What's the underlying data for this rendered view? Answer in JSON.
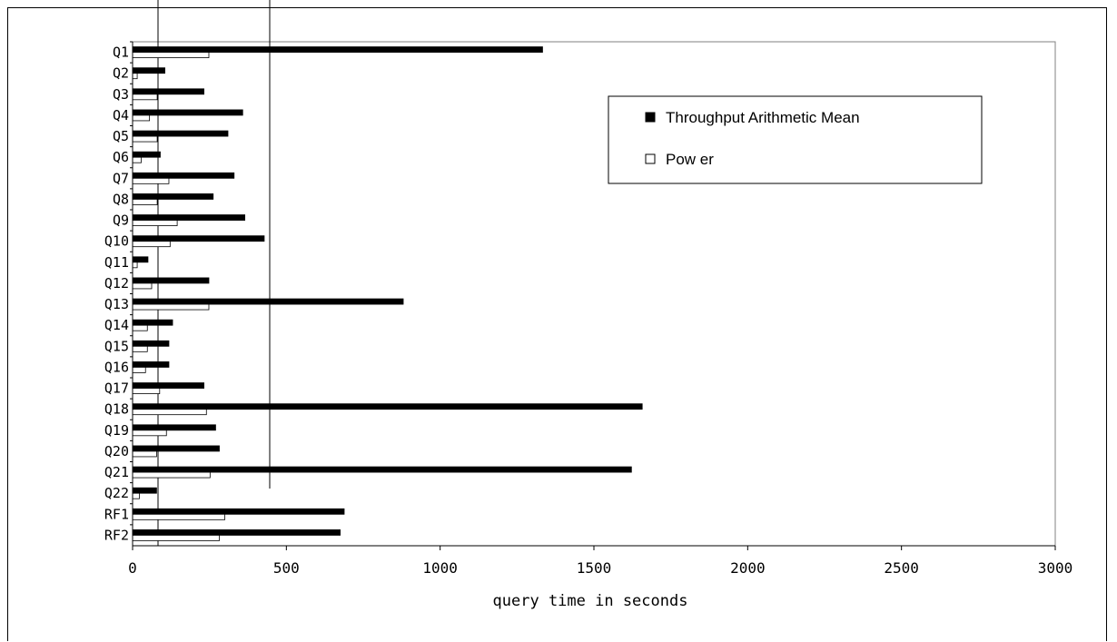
{
  "chart_data": {
    "type": "bar",
    "orientation": "horizontal",
    "categories": [
      "Q1",
      "Q2",
      "Q3",
      "Q4",
      "Q5",
      "Q6",
      "Q7",
      "Q8",
      "Q9",
      "Q10",
      "Q11",
      "Q12",
      "Q13",
      "Q14",
      "Q15",
      "Q16",
      "Q17",
      "Q18",
      "Q19",
      "Q20",
      "Q21",
      "Q22",
      "RF1",
      "RF2"
    ],
    "series": [
      {
        "name": "Throughput Arithmetic Mean",
        "color": "#000000",
        "values": [
          1333,
          105,
          232,
          358,
          310,
          90,
          330,
          262,
          365,
          428,
          50,
          248,
          880,
          130,
          118,
          118,
          232,
          1657,
          270,
          282,
          1622,
          78,
          688,
          675
        ]
      },
      {
        "name": "Pow er",
        "color": "#ffffff",
        "values": [
          248,
          15,
          80,
          55,
          80,
          28,
          118,
          80,
          145,
          122,
          15,
          62,
          248,
          48,
          48,
          42,
          88,
          240,
          110,
          78,
          252,
          22,
          300,
          282
        ]
      }
    ],
    "xlabel": "query time in seconds",
    "xlim": [
      0,
      3000
    ],
    "xticks": [
      0,
      500,
      1000,
      1500,
      2000,
      2500,
      3000
    ],
    "legend_position": "top-right",
    "grid": false
  }
}
